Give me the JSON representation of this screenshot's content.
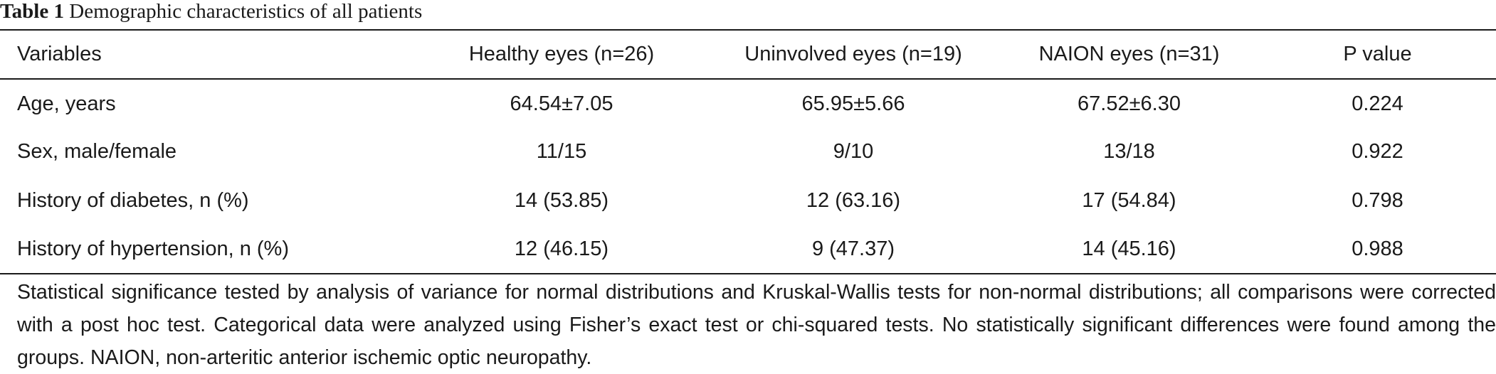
{
  "caption": {
    "label": "Table 1",
    "title": "Demographic characteristics of all patients"
  },
  "table": {
    "headers": [
      "Variables",
      "Healthy eyes (n=26)",
      "Uninvolved eyes (n=19)",
      "NAION eyes (n=31)",
      "P value"
    ],
    "rows": [
      [
        "Age, years",
        "64.54±7.05",
        "65.95±5.66",
        "67.52±6.30",
        "0.224"
      ],
      [
        "Sex, male/female",
        "11/15",
        "9/10",
        "13/18",
        "0.922"
      ],
      [
        "History of diabetes, n (%)",
        "14 (53.85)",
        "12 (63.16)",
        "17 (54.84)",
        "0.798"
      ],
      [
        "History of hypertension, n (%)",
        "12 (46.15)",
        "9 (47.37)",
        "14 (45.16)",
        "0.988"
      ]
    ]
  },
  "footnote": "Statistical significance tested by analysis of variance for normal distributions and Kruskal-Wallis tests for non-normal distributions; all comparisons were corrected with a post hoc test. Categorical data were analyzed using Fisher’s exact test or chi-squared tests. No statistically significant differences were found among the groups. NAION, non-arteritic anterior ischemic optic neuropathy."
}
